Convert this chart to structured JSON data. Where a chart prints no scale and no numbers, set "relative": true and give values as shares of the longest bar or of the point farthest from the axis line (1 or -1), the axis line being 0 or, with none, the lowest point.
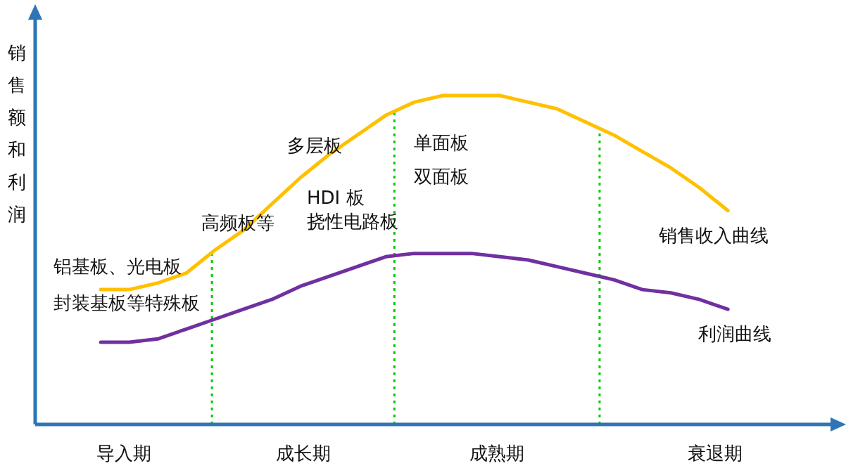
{
  "chart_data": {
    "type": "line",
    "relative": true,
    "ylabel": "销售额和利润",
    "categories": [
      null,
      null,
      null,
      null,
      null,
      null,
      null,
      null,
      null,
      null,
      null,
      null,
      null,
      null,
      null,
      null,
      null,
      null,
      null,
      null,
      null,
      null,
      null
    ],
    "series": [
      {
        "name": "销售收入曲线",
        "color": "#ffc000",
        "values": [
          0.41,
          0.41,
          0.43,
          0.46,
          0.53,
          0.59,
          0.67,
          0.75,
          0.82,
          0.88,
          0.94,
          0.98,
          1,
          1,
          1,
          0.98,
          0.96,
          0.92,
          0.88,
          0.83,
          0.78,
          0.72,
          0.65
        ]
      },
      {
        "name": "利润曲线",
        "color": "#7030a0",
        "values": [
          0.25,
          0.25,
          0.26,
          0.29,
          0.32,
          0.35,
          0.38,
          0.42,
          0.45,
          0.48,
          0.51,
          0.52,
          0.52,
          0.52,
          0.51,
          0.5,
          0.48,
          0.46,
          0.44,
          0.41,
          0.4,
          0.38,
          0.35
        ]
      }
    ],
    "annotations": [
      "铝基板、光电板",
      "封装基板等特殊板",
      "高频板等",
      "多层板",
      "HDI 板",
      "挠性电路板",
      "单面板",
      "双面板",
      "导入期",
      "成长期",
      "成熟期",
      "衰退期"
    ],
    "legend": false
  }
}
